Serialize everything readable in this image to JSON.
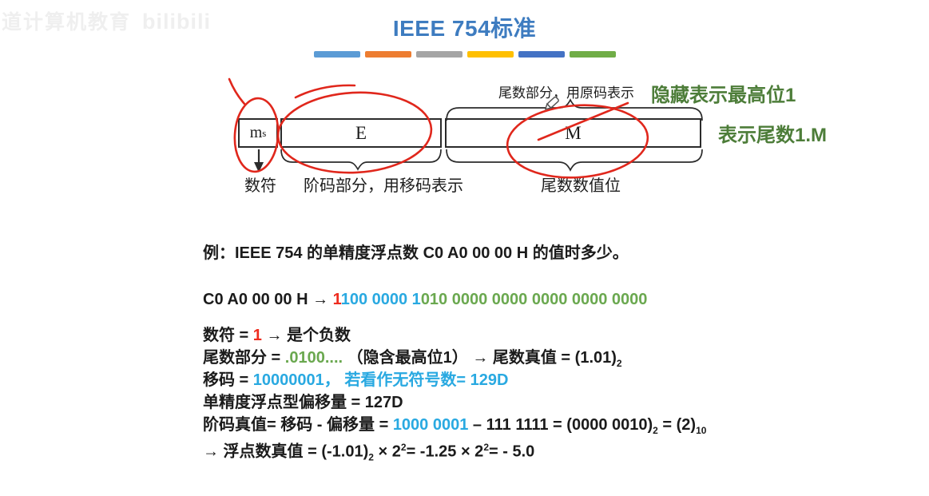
{
  "watermark": {
    "text": "道计算机教育",
    "logo": "bilibili"
  },
  "title": "IEEE 754标准",
  "title_color": "#3E7CC0",
  "bars": [
    "#5B9BD5",
    "#ED7D31",
    "#A5A5A5",
    "#FFC000",
    "#4472C4",
    "#70AD47"
  ],
  "diagram": {
    "fields": [
      {
        "label": "m",
        "sub": "s"
      },
      {
        "label": "E"
      },
      {
        "label": "M"
      }
    ],
    "top_label": "尾数部分，用原码表示",
    "green_note_1": "隐藏表示最高位1",
    "green_note_2": "表示尾数1.M",
    "bottom_labels": [
      "数符",
      "阶码部分，用移码表示",
      "尾数数值位"
    ],
    "annotation_color": "#E0271C",
    "dark_green": "#4d7d39"
  },
  "example": {
    "colors": {
      "black": "#1b1b1b",
      "red": "#EE2C1F",
      "blue": "#29A9E1",
      "green": "#6AA84F"
    },
    "lines": [
      [
        {
          "t": "例：IEEE 754 的单精度浮点数 C0 A0 00 00 H 的值时多少。"
        }
      ],
      [
        {
          "t": "C0 A0 00 00 H →  "
        },
        {
          "t": "1",
          "c": "red"
        },
        {
          "t": "100 0000 1",
          "c": "blue"
        },
        {
          "t": "010 0000 0000 0000 0000 0000",
          "c": "green"
        }
      ],
      [
        {
          "t": "数符 = "
        },
        {
          "t": "1",
          "c": "red"
        },
        {
          "t": " → 是个负数"
        }
      ],
      [
        {
          "t": "尾数部分 = "
        },
        {
          "t": ".0100....",
          "c": "green"
        },
        {
          "t": "  （隐含最高位1） → 尾数真值 = (1.01)"
        },
        {
          "t": "2",
          "s": "sub"
        }
      ],
      [
        {
          "t": "移码 = "
        },
        {
          "t": "10000001， 若看作无符号数= 129D",
          "c": "blue"
        }
      ],
      [
        {
          "t": "单精度浮点型偏移量 = 127D"
        }
      ],
      [
        {
          "t": "阶码真值= 移码 - 偏移量 = "
        },
        {
          "t": "1000 0001",
          "c": "blue"
        },
        {
          "t": " – 111 1111 = (0000 0010)"
        },
        {
          "t": "2",
          "s": "sub"
        },
        {
          "t": " = (2)"
        },
        {
          "t": "10",
          "s": "sub"
        }
      ],
      [
        {
          "t": "→  浮点数真值 = (-1.01)"
        },
        {
          "t": "2",
          "s": "sub"
        },
        {
          "t": " × 2"
        },
        {
          "t": "2",
          "s": "sup"
        },
        {
          "t": "=  -1.25 × 2"
        },
        {
          "t": "2",
          "s": "sup"
        },
        {
          "t": "=  - 5.0"
        }
      ]
    ]
  }
}
